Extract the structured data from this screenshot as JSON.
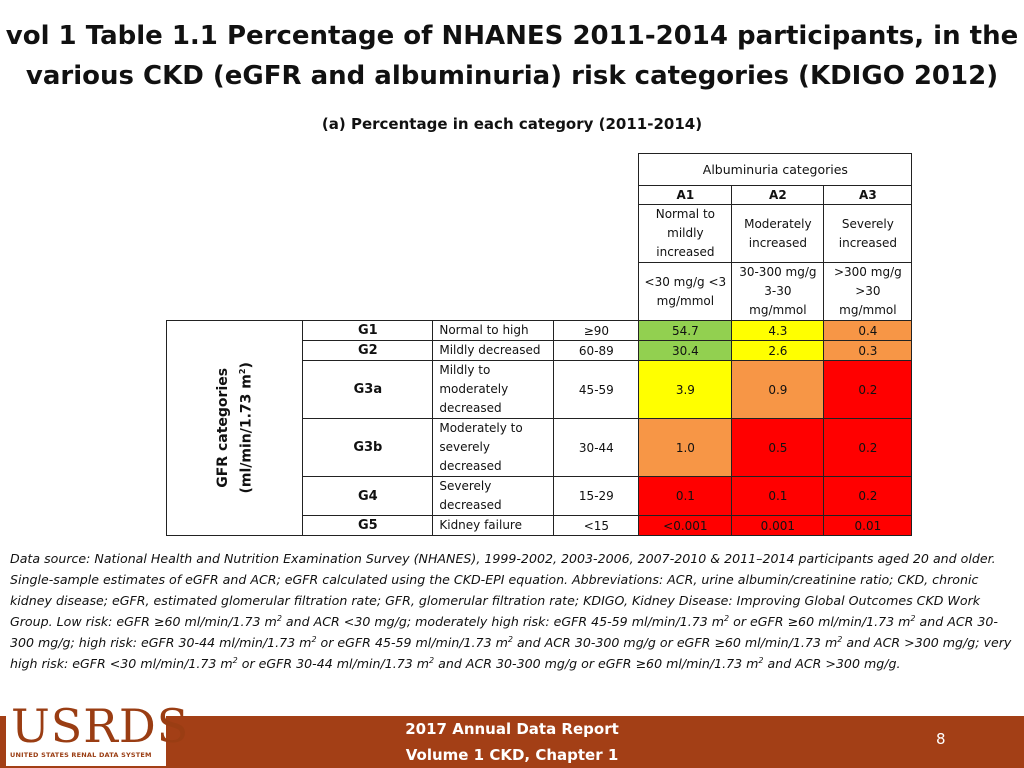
{
  "title_line1": "vol 1 Table 1.1 Percentage of NHANES 2011-2014 participants, in the",
  "title_line2": "various CKD (eGFR and albuminuria) risk categories (KDIGO 2012)",
  "subtitle": "(a)   Percentage in each category (2011-2014)",
  "albuminuria_header": "Albuminuria categories",
  "albuminuria": [
    {
      "code": "A1",
      "desc": [
        "Normal to",
        "mildly",
        "increased"
      ],
      "range": [
        "<30 mg/g <3",
        "mg/mmol"
      ]
    },
    {
      "code": "A2",
      "desc": [
        "Moderately",
        "increased"
      ],
      "range": [
        "30-300 mg/g",
        "3-30",
        "mg/mmol"
      ]
    },
    {
      "code": "A3",
      "desc": [
        "Severely",
        "increased"
      ],
      "range": [
        ">300 mg/g",
        ">30",
        "mg/mmol"
      ]
    }
  ],
  "gfr_label": [
    "GFR categories",
    "(ml/min/1.73 m",
    "2",
    ")"
  ],
  "gfr_rows": [
    {
      "stage": "G1",
      "desc": [
        "Normal to high"
      ],
      "range": "≥90",
      "values": [
        "54.7",
        "4.3",
        "0.4"
      ]
    },
    {
      "stage": "G2",
      "desc": [
        "Mildly decreased"
      ],
      "range": "60-89",
      "values": [
        "30.4",
        "2.6",
        "0.3"
      ]
    },
    {
      "stage": "G3a",
      "desc": [
        "Mildly to",
        "moderately",
        "decreased"
      ],
      "range": "45-59",
      "values": [
        "3.9",
        "0.9",
        "0.2"
      ]
    },
    {
      "stage": "G3b",
      "desc": [
        "Moderately to",
        "severely decreased"
      ],
      "range": "30-44",
      "values": [
        "1.0",
        "0.5",
        "0.2"
      ]
    },
    {
      "stage": "G4",
      "desc": [
        "Severely",
        "decreased"
      ],
      "range": "15-29",
      "values": [
        "0.1",
        "0.1",
        "0.2"
      ]
    },
    {
      "stage": "G5",
      "desc": [
        "Kidney failure"
      ],
      "range": "<15",
      "values": [
        "<0.001",
        "0.001",
        "0.01"
      ]
    }
  ],
  "risk_colors": {
    "green": "#92d050",
    "yellow": "#ffff00",
    "orange": "#f79646",
    "red": "#ff0000"
  },
  "note": [
    "Data source: National Health and Nutrition Examination Survey (NHANES), 1999-2002, 2003-2006, 2007-2010 & 2011–2014 participants aged 20 and older. Single-sample estimates of eGFR and ACR; eGFR calculated using the CKD-EPI equation. Abbreviations: ACR, urine albumin/creatinine ratio; CKD, chronic kidney disease; eGFR, estimated glomerular filtration rate; GFR, glomerular filtration rate; KDIGO, Kidney Disease: Improving Global Outcomes CKD Work Group. Low risk: eGFR ≥60 ml/min/1.73 m",
    "2",
    " and ACR <30 mg/g; moderately high risk: eGFR 45-59 ml/min/1.73 m",
    "2",
    " or eGFR ≥60 ml/min/1.73 m",
    "2",
    " and ACR 30-300 mg/g; high risk: eGFR 30-44 ml/min/1.73 m",
    "2",
    " or eGFR 45-59 ml/min/1.73 m",
    "2",
    " and ACR 30-300 mg/g or eGFR ≥60 ml/min/1.73 m",
    "2",
    " and ACR >300 mg/g; very high risk: eGFR <30 ml/min/1.73 m",
    "2",
    " or eGFR 30-44 ml/min/1.73 m",
    "2",
    " and ACR 30-300 mg/g or eGFR ≥60 ml/min/1.73 m",
    "2",
    " and ACR >300 mg/g."
  ],
  "footer": {
    "logo_text": "USRDS",
    "logo_subtext": "UNITED STATES RENAL DATA SYSTEM",
    "line1": "2017 Annual Data Report",
    "line2": "Volume 1 CKD, Chapter 1",
    "page": "8"
  }
}
